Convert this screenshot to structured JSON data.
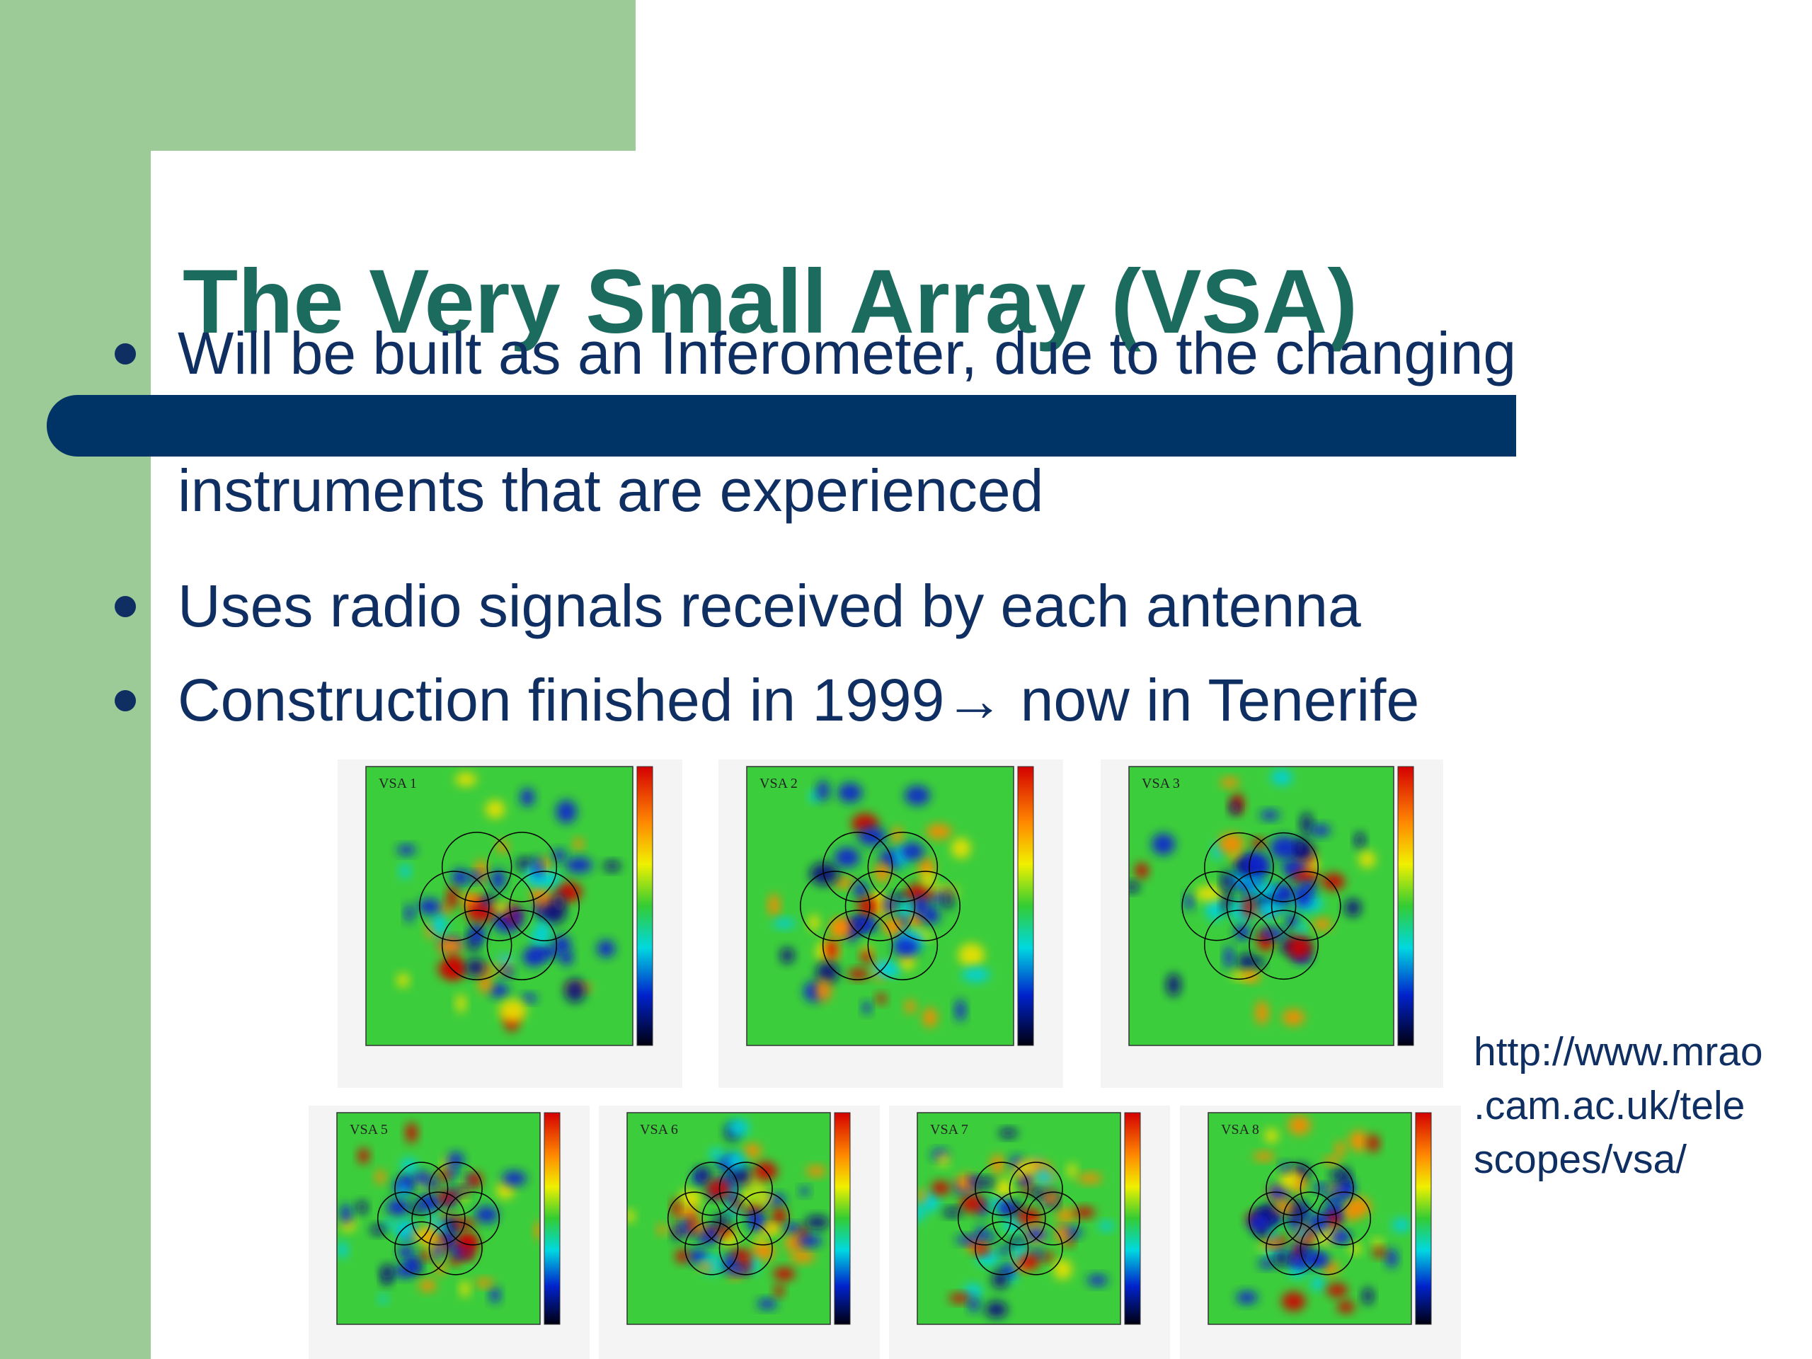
{
  "title": "The Very Small Array (VSA)",
  "bullets": [
    {
      "lines": [
        "Will be built as an Inferometer, due to the changing",
        "instruments that are experienced"
      ]
    },
    {
      "lines": [
        "Uses radio signals received by each antenna"
      ]
    },
    {
      "lines": [
        "Construction finished in 1999→ now in Tenerife"
      ]
    }
  ],
  "figure": {
    "panels": [
      "VSA 1",
      "VSA 2",
      "VSA 3",
      "VSA 5",
      "VSA 6",
      "VSA 7",
      "VSA 8"
    ]
  },
  "source": [
    "http://www.mrao",
    ".cam.ac.uk/tele",
    "scopes/vsa/"
  ]
}
